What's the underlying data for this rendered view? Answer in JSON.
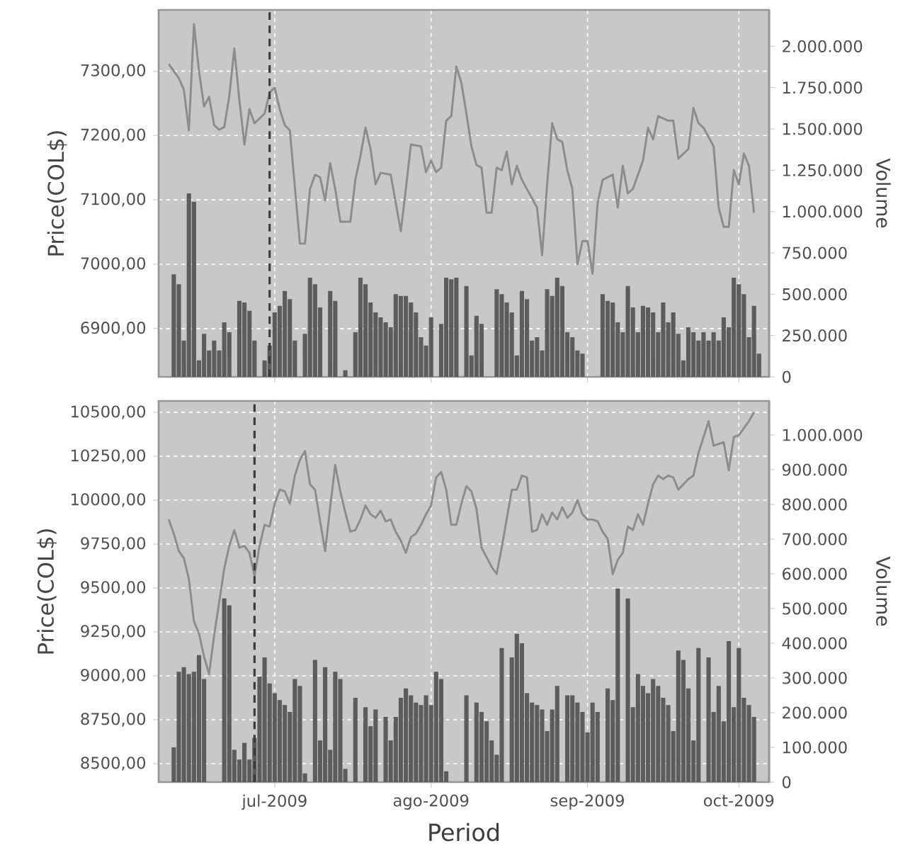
{
  "chart_data": [
    {
      "type": "line",
      "ylabel": "Price(COL$)",
      "y2label": "Volume",
      "grid": true,
      "tick_labels": "y",
      "xlim": [
        "2009-06-08",
        "2009-10-07"
      ],
      "xticks": [
        {
          "value": "2009-07-01",
          "label": null
        },
        {
          "value": "2009-08-01",
          "label": null
        },
        {
          "value": "2009-09-01",
          "label": null
        },
        {
          "value": "2009-10-01",
          "label": null
        }
      ],
      "ylim": [
        6825,
        7395
      ],
      "yticks": [
        {
          "value": 6900,
          "label": "6900,00"
        },
        {
          "value": 7000,
          "label": "7000,00"
        },
        {
          "value": 7100,
          "label": "7100,00"
        },
        {
          "value": 7200,
          "label": "7200,00"
        },
        {
          "value": 7300,
          "label": "7300,00"
        }
      ],
      "y2lim": [
        0,
        2220000
      ],
      "y2ticks": [
        0,
        {
          "value": 250000,
          "label": "250.000"
        },
        {
          "value": 500000,
          "label": "500.000"
        },
        {
          "value": 750000,
          "label": "750.000"
        },
        {
          "value": 1000000,
          "label": "1.000.000"
        },
        {
          "value": 1250000,
          "label": "1.250.000"
        },
        {
          "value": 1500000,
          "label": "1.500.000"
        },
        {
          "value": 1750000,
          "label": "1.750.000"
        },
        {
          "value": 2000000,
          "label": "2.000.000"
        }
      ],
      "ref_lines": [
        {
          "axis": "x",
          "value": "2009-06-30",
          "color": "#3a3a3a",
          "line_style": "dashed"
        }
      ],
      "series": [
        {
          "type": "bar",
          "axis": "y2",
          "color": "#5c5c5c",
          "x": [
            "2009-06-11",
            "2009-06-12",
            "2009-06-13",
            "2009-06-14",
            "2009-06-15",
            "2009-06-16",
            "2009-06-17",
            "2009-06-18",
            "2009-06-19",
            "2009-06-20",
            "2009-06-21",
            "2009-06-22",
            "2009-06-24",
            "2009-06-25",
            "2009-06-26",
            "2009-06-27",
            "2009-06-29",
            "2009-06-30",
            "2009-07-01",
            "2009-07-02",
            "2009-07-03",
            "2009-07-04",
            "2009-07-05",
            "2009-07-07",
            "2009-07-08",
            "2009-07-09",
            "2009-07-10",
            "2009-07-12",
            "2009-07-13",
            "2009-07-15",
            "2009-07-17",
            "2009-07-18",
            "2009-07-19",
            "2009-07-20",
            "2009-07-21",
            "2009-07-22",
            "2009-07-23",
            "2009-07-24",
            "2009-07-25",
            "2009-07-26",
            "2009-07-27",
            "2009-07-28",
            "2009-07-29",
            "2009-07-30",
            "2009-07-31",
            "2009-08-01",
            "2009-08-03",
            "2009-08-04",
            "2009-08-05",
            "2009-08-06",
            "2009-08-08",
            "2009-08-09",
            "2009-08-10",
            "2009-08-11",
            "2009-08-14",
            "2009-08-15",
            "2009-08-16",
            "2009-08-17",
            "2009-08-18",
            "2009-08-19",
            "2009-08-20",
            "2009-08-21",
            "2009-08-22",
            "2009-08-23",
            "2009-08-24",
            "2009-08-25",
            "2009-08-26",
            "2009-08-27",
            "2009-08-28",
            "2009-08-29",
            "2009-08-30",
            "2009-08-31",
            "2009-09-04",
            "2009-09-05",
            "2009-09-06",
            "2009-09-07",
            "2009-09-08",
            "2009-09-09",
            "2009-09-10",
            "2009-09-11",
            "2009-09-12",
            "2009-09-13",
            "2009-09-14",
            "2009-09-15",
            "2009-09-16",
            "2009-09-17",
            "2009-09-18",
            "2009-09-19",
            "2009-09-20",
            "2009-09-21",
            "2009-09-22",
            "2009-09-23",
            "2009-09-24",
            "2009-09-25",
            "2009-09-26",
            "2009-09-27",
            "2009-09-28",
            "2009-09-29",
            "2009-09-30",
            "2009-10-01",
            "2009-10-02",
            "2009-10-03",
            "2009-10-04",
            "2009-10-05"
          ],
          "values": [
            620000,
            560000,
            220000,
            1110000,
            1060000,
            100000,
            260000,
            160000,
            220000,
            160000,
            330000,
            270000,
            460000,
            450000,
            400000,
            220000,
            100000,
            190000,
            390000,
            430000,
            520000,
            470000,
            220000,
            260000,
            600000,
            560000,
            420000,
            520000,
            460000,
            40000,
            270000,
            600000,
            560000,
            450000,
            390000,
            360000,
            330000,
            300000,
            500000,
            490000,
            490000,
            450000,
            390000,
            240000,
            190000,
            360000,
            320000,
            600000,
            590000,
            600000,
            550000,
            130000,
            370000,
            320000,
            530000,
            500000,
            450000,
            390000,
            130000,
            520000,
            470000,
            220000,
            240000,
            160000,
            530000,
            490000,
            600000,
            550000,
            270000,
            240000,
            160000,
            140000,
            500000,
            460000,
            450000,
            330000,
            270000,
            550000,
            420000,
            270000,
            430000,
            420000,
            390000,
            270000,
            450000,
            330000,
            390000,
            260000,
            100000,
            300000,
            270000,
            220000,
            270000,
            220000,
            270000,
            220000,
            360000,
            300000,
            600000,
            560000,
            500000,
            240000,
            430000,
            140000
          ]
        },
        {
          "color": "#8c8c8c",
          "x": [
            "2009-06-10",
            "2009-06-12",
            "2009-06-13",
            "2009-06-14",
            "2009-06-15",
            "2009-06-16",
            "2009-06-17",
            "2009-06-18",
            "2009-06-19",
            "2009-06-20",
            "2009-06-21",
            "2009-06-22",
            "2009-06-23",
            "2009-06-24",
            "2009-06-25",
            "2009-06-26",
            "2009-06-27",
            "2009-06-29",
            "2009-06-30",
            "2009-07-01",
            "2009-07-02",
            "2009-07-03",
            "2009-07-04",
            "2009-07-06",
            "2009-07-07",
            "2009-07-08",
            "2009-07-09",
            "2009-07-10",
            "2009-07-11",
            "2009-07-12",
            "2009-07-13",
            "2009-07-14",
            "2009-07-16",
            "2009-07-17",
            "2009-07-18",
            "2009-07-19",
            "2009-07-20",
            "2009-07-21",
            "2009-07-22",
            "2009-07-24",
            "2009-07-26",
            "2009-07-27",
            "2009-07-28",
            "2009-07-30",
            "2009-07-31",
            "2009-08-01",
            "2009-08-02",
            "2009-08-03",
            "2009-08-04",
            "2009-08-05",
            "2009-08-06",
            "2009-08-07",
            "2009-08-08",
            "2009-08-09",
            "2009-08-10",
            "2009-08-11",
            "2009-08-12",
            "2009-08-13",
            "2009-08-14",
            "2009-08-15",
            "2009-08-16",
            "2009-08-17",
            "2009-08-18",
            "2009-08-19",
            "2009-08-22",
            "2009-08-23",
            "2009-08-24",
            "2009-08-25",
            "2009-08-26",
            "2009-08-27",
            "2009-08-28",
            "2009-08-29",
            "2009-08-30",
            "2009-08-31",
            "2009-09-01",
            "2009-09-02",
            "2009-09-03",
            "2009-09-04",
            "2009-09-06",
            "2009-09-07",
            "2009-09-08",
            "2009-09-09",
            "2009-09-10",
            "2009-09-12",
            "2009-09-13",
            "2009-09-14",
            "2009-09-15",
            "2009-09-17",
            "2009-09-18",
            "2009-09-19",
            "2009-09-21",
            "2009-09-22",
            "2009-09-23",
            "2009-09-24",
            "2009-09-26",
            "2009-09-27",
            "2009-09-28",
            "2009-09-29",
            "2009-09-30",
            "2009-10-01",
            "2009-10-02",
            "2009-10-03",
            "2009-10-04"
          ],
          "values": [
            7311,
            7289,
            7271,
            7208,
            7373,
            7300,
            7245,
            7260,
            7216,
            7209,
            7213,
            7261,
            7335,
            7255,
            7186,
            7241,
            7219,
            7234,
            7267,
            7274,
            7241,
            7216,
            7208,
            7032,
            7032,
            7117,
            7139,
            7135,
            7099,
            7157,
            7117,
            7066,
            7066,
            7132,
            7168,
            7212,
            7179,
            7124,
            7142,
            7139,
            7051,
            7117,
            7186,
            7183,
            7143,
            7161,
            7143,
            7150,
            7223,
            7230,
            7307,
            7282,
            7234,
            7183,
            7154,
            7150,
            7080,
            7080,
            7150,
            7146,
            7175,
            7124,
            7153,
            7131,
            7088,
            7014,
            7124,
            7219,
            7194,
            7190,
            7146,
            7117,
            7000,
            7036,
            7036,
            6985,
            7095,
            7131,
            7139,
            7088,
            7153,
            7110,
            7117,
            7161,
            7212,
            7194,
            7230,
            7223,
            7223,
            7164,
            7179,
            7243,
            7219,
            7212,
            7183,
            7088,
            7058,
            7058,
            7146,
            7124,
            7172,
            7153,
            7080
          ]
        }
      ]
    },
    {
      "type": "line",
      "xlabel": "Period",
      "ylabel": "Price(COL$)",
      "y2label": "Volume",
      "grid": true,
      "xlim": [
        "2009-06-08",
        "2009-10-07"
      ],
      "xticks": [
        {
          "value": "2009-07-01",
          "label": "jul-2009"
        },
        {
          "value": "2009-08-01",
          "label": "ago-2009"
        },
        {
          "value": "2009-09-01",
          "label": "sep-2009"
        },
        {
          "value": "2009-10-01",
          "label": "oct-2009"
        }
      ],
      "ylim": [
        8395,
        10565
      ],
      "yticks": [
        {
          "value": 8500,
          "label": "8500,00"
        },
        {
          "value": 8750,
          "label": "8750,00"
        },
        {
          "value": 9000,
          "label": "9000,00"
        },
        {
          "value": 9250,
          "label": "9250,00"
        },
        {
          "value": 9500,
          "label": "9500,00"
        },
        {
          "value": 9750,
          "label": "9750,00"
        },
        {
          "value": 10000,
          "label": "10000,00"
        },
        {
          "value": 10250,
          "label": "10250,00"
        },
        {
          "value": 10500,
          "label": "10500,00"
        }
      ],
      "y2lim": [
        0,
        1098000
      ],
      "y2ticks": [
        0,
        {
          "value": 100000,
          "label": "100.000"
        },
        {
          "value": 200000,
          "label": "200.000"
        },
        {
          "value": 300000,
          "label": "300.000"
        },
        {
          "value": 400000,
          "label": "400.000"
        },
        {
          "value": 500000,
          "label": "500.000"
        },
        {
          "value": 600000,
          "label": "600.000"
        },
        {
          "value": 700000,
          "label": "700.000"
        },
        {
          "value": 800000,
          "label": "800.000"
        },
        {
          "value": 900000,
          "label": "900.000"
        },
        {
          "value": 1000000,
          "label": "1.000.000"
        }
      ],
      "ref_lines": [
        {
          "axis": "x",
          "value": "2009-06-27",
          "color": "#3a3a3a",
          "line_style": "dashed"
        }
      ],
      "series": [
        {
          "type": "bar",
          "axis": "y2",
          "color": "#5c5c5c",
          "x": [
            "2009-06-11",
            "2009-06-12",
            "2009-06-13",
            "2009-06-14",
            "2009-06-15",
            "2009-06-16",
            "2009-06-17",
            "2009-06-21",
            "2009-06-22",
            "2009-06-23",
            "2009-06-24",
            "2009-06-25",
            "2009-06-26",
            "2009-06-27",
            "2009-06-28",
            "2009-06-29",
            "2009-06-30",
            "2009-07-01",
            "2009-07-02",
            "2009-07-03",
            "2009-07-04",
            "2009-07-05",
            "2009-07-06",
            "2009-07-07",
            "2009-07-09",
            "2009-07-10",
            "2009-07-11",
            "2009-07-12",
            "2009-07-13",
            "2009-07-14",
            "2009-07-15",
            "2009-07-17",
            "2009-07-19",
            "2009-07-20",
            "2009-07-21",
            "2009-07-23",
            "2009-07-24",
            "2009-07-25",
            "2009-07-26",
            "2009-07-27",
            "2009-07-28",
            "2009-07-29",
            "2009-07-30",
            "2009-07-31",
            "2009-08-01",
            "2009-08-02",
            "2009-08-03",
            "2009-08-04",
            "2009-08-08",
            "2009-08-10",
            "2009-08-11",
            "2009-08-12",
            "2009-08-13",
            "2009-08-14",
            "2009-08-15",
            "2009-08-17",
            "2009-08-18",
            "2009-08-19",
            "2009-08-20",
            "2009-08-21",
            "2009-08-22",
            "2009-08-23",
            "2009-08-24",
            "2009-08-25",
            "2009-08-26",
            "2009-08-28",
            "2009-08-29",
            "2009-08-30",
            "2009-08-31",
            "2009-09-01",
            "2009-09-02",
            "2009-09-03",
            "2009-09-05",
            "2009-09-06",
            "2009-09-07",
            "2009-09-09",
            "2009-09-10",
            "2009-09-11",
            "2009-09-12",
            "2009-09-13",
            "2009-09-14",
            "2009-09-15",
            "2009-09-16",
            "2009-09-17",
            "2009-09-18",
            "2009-09-19",
            "2009-09-20",
            "2009-09-21",
            "2009-09-22",
            "2009-09-23",
            "2009-09-25",
            "2009-09-26",
            "2009-09-27",
            "2009-09-28",
            "2009-09-29",
            "2009-09-30",
            "2009-10-01",
            "2009-10-02",
            "2009-10-03",
            "2009-10-04"
          ],
          "values": [
            100000,
            318000,
            331000,
            311000,
            318000,
            366000,
            297000,
            529000,
            509000,
            93000,
            65000,
            113000,
            65000,
            127000,
            304000,
            359000,
            284000,
            256000,
            236000,
            222000,
            202000,
            297000,
            277000,
            25000,
            352000,
            120000,
            331000,
            93000,
            318000,
            297000,
            38000,
            243000,
            216000,
            161000,
            209000,
            188000,
            120000,
            188000,
            243000,
            270000,
            250000,
            229000,
            222000,
            250000,
            222000,
            318000,
            297000,
            31000,
            250000,
            229000,
            202000,
            175000,
            120000,
            79000,
            386000,
            359000,
            427000,
            400000,
            256000,
            229000,
            222000,
            209000,
            147000,
            209000,
            277000,
            250000,
            250000,
            229000,
            202000,
            143000,
            229000,
            202000,
            270000,
            236000,
            557000,
            529000,
            216000,
            311000,
            277000,
            256000,
            297000,
            277000,
            243000,
            222000,
            147000,
            379000,
            352000,
            270000,
            120000,
            386000,
            359000,
            202000,
            277000,
            175000,
            406000,
            216000,
            386000,
            243000,
            222000,
            188000
          ]
        },
        {
          "color": "#8c8c8c",
          "x": [
            "2009-06-10",
            "2009-06-11",
            "2009-06-12",
            "2009-06-13",
            "2009-06-14",
            "2009-06-15",
            "2009-06-16",
            "2009-06-17",
            "2009-06-18",
            "2009-06-19",
            "2009-06-20",
            "2009-06-21",
            "2009-06-22",
            "2009-06-23",
            "2009-06-24",
            "2009-06-25",
            "2009-06-26",
            "2009-06-27",
            "2009-06-28",
            "2009-06-29",
            "2009-06-30",
            "2009-07-01",
            "2009-07-02",
            "2009-07-03",
            "2009-07-04",
            "2009-07-05",
            "2009-07-06",
            "2009-07-07",
            "2009-07-08",
            "2009-07-09",
            "2009-07-10",
            "2009-07-11",
            "2009-07-12",
            "2009-07-13",
            "2009-07-14",
            "2009-07-15",
            "2009-07-16",
            "2009-07-17",
            "2009-07-18",
            "2009-07-19",
            "2009-07-20",
            "2009-07-21",
            "2009-07-22",
            "2009-07-23",
            "2009-07-24",
            "2009-07-25",
            "2009-07-26",
            "2009-07-27",
            "2009-07-28",
            "2009-07-29",
            "2009-07-30",
            "2009-07-31",
            "2009-08-01",
            "2009-08-02",
            "2009-08-03",
            "2009-08-04",
            "2009-08-05",
            "2009-08-06",
            "2009-08-07",
            "2009-08-08",
            "2009-08-09",
            "2009-08-10",
            "2009-08-11",
            "2009-08-13",
            "2009-08-14",
            "2009-08-15",
            "2009-08-17",
            "2009-08-18",
            "2009-08-19",
            "2009-08-20",
            "2009-08-21",
            "2009-08-22",
            "2009-08-23",
            "2009-08-24",
            "2009-08-25",
            "2009-08-26",
            "2009-08-27",
            "2009-08-28",
            "2009-08-29",
            "2009-08-30",
            "2009-08-31",
            "2009-09-01",
            "2009-09-02",
            "2009-09-03",
            "2009-09-04",
            "2009-09-05",
            "2009-09-06",
            "2009-09-07",
            "2009-09-08",
            "2009-09-09",
            "2009-09-10",
            "2009-09-11",
            "2009-09-12",
            "2009-09-13",
            "2009-09-14",
            "2009-09-15",
            "2009-09-16",
            "2009-09-17",
            "2009-09-18",
            "2009-09-19",
            "2009-09-20",
            "2009-09-21",
            "2009-09-22",
            "2009-09-23",
            "2009-09-24",
            "2009-09-25",
            "2009-09-26",
            "2009-09-27",
            "2009-09-28",
            "2009-09-29",
            "2009-09-30",
            "2009-10-01",
            "2009-10-02",
            "2009-10-03",
            "2009-10-04"
          ],
          "values": [
            9890,
            9810,
            9710,
            9670,
            9550,
            9310,
            9240,
            9110,
            9010,
            9230,
            9420,
            9610,
            9740,
            9830,
            9730,
            9740,
            9700,
            9570,
            9740,
            9860,
            9850,
            9980,
            10060,
            10050,
            9980,
            10140,
            10230,
            10280,
            10090,
            10060,
            9880,
            9710,
            9960,
            10200,
            10050,
            9930,
            9820,
            9830,
            9890,
            9970,
            9920,
            9900,
            9940,
            9880,
            9890,
            9820,
            9770,
            9700,
            9790,
            9810,
            9860,
            9920,
            9970,
            10130,
            10160,
            10060,
            9860,
            9860,
            9980,
            10080,
            10050,
            9950,
            9730,
            9620,
            9580,
            9730,
            10060,
            10060,
            10140,
            10130,
            9820,
            9830,
            9920,
            9860,
            9930,
            9890,
            9960,
            9900,
            9930,
            10000,
            9920,
            9890,
            9890,
            9880,
            9820,
            9780,
            9580,
            9660,
            9700,
            9850,
            9830,
            9920,
            9860,
            9980,
            10090,
            10140,
            10120,
            10140,
            10130,
            10060,
            10090,
            10120,
            10140,
            10270,
            10360,
            10450,
            10310,
            10320,
            10330,
            10170,
            10360,
            10370,
            10410,
            10450,
            10500
          ]
        }
      ]
    }
  ]
}
